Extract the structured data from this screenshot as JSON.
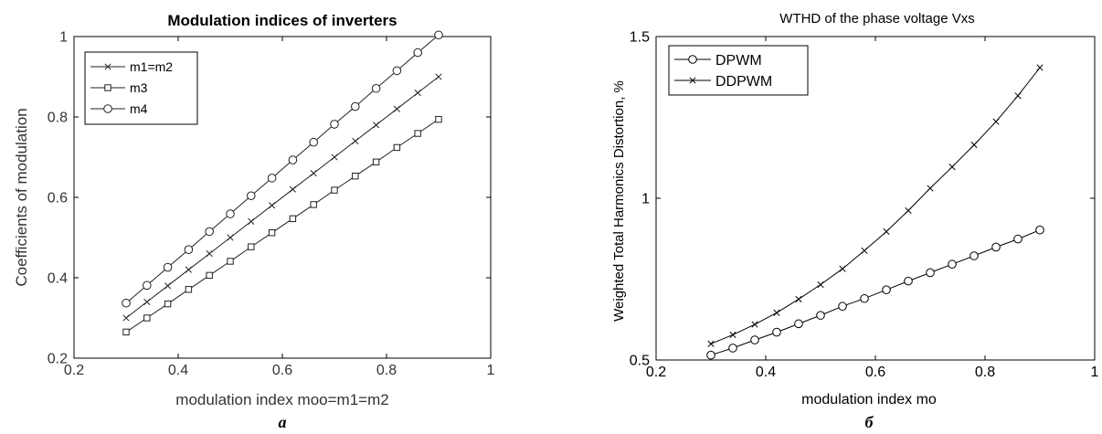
{
  "chart_data": [
    {
      "type": "line",
      "title": "Modulation indices of inverters",
      "xlabel": "modulation index moo=m1=m2",
      "ylabel": "Coefficients of modulation",
      "xlim": [
        0.2,
        1
      ],
      "ylim": [
        0.2,
        1
      ],
      "xticks": [
        "0.2",
        "0.4",
        "0.6",
        "0.8",
        "1"
      ],
      "yticks": [
        "0.2",
        "0.4",
        "0.6",
        "0.8",
        "1"
      ],
      "grid": false,
      "legend_position": "top-left",
      "caption": "a",
      "x": [
        0.3,
        0.34,
        0.38,
        0.42,
        0.46,
        0.5,
        0.54,
        0.58,
        0.62,
        0.66,
        0.7,
        0.74,
        0.78,
        0.82,
        0.86,
        0.9
      ],
      "series": [
        {
          "name": "m1=m2",
          "marker": "x",
          "values": [
            0.3,
            0.34,
            0.38,
            0.42,
            0.46,
            0.5,
            0.54,
            0.58,
            0.62,
            0.66,
            0.7,
            0.74,
            0.78,
            0.82,
            0.86,
            0.9
          ]
        },
        {
          "name": "m3",
          "marker": "square",
          "values": [
            0.265,
            0.3,
            0.335,
            0.371,
            0.406,
            0.441,
            0.477,
            0.512,
            0.547,
            0.582,
            0.618,
            0.653,
            0.688,
            0.724,
            0.759,
            0.794
          ]
        },
        {
          "name": "m4",
          "marker": "circle",
          "values": [
            0.337,
            0.381,
            0.426,
            0.47,
            0.515,
            0.559,
            0.604,
            0.648,
            0.693,
            0.737,
            0.782,
            0.826,
            0.871,
            0.915,
            0.96,
            1.004
          ]
        }
      ]
    },
    {
      "type": "line",
      "title": "WTHD of the phase voltage Vxs",
      "xlabel": "modulation index mo",
      "ylabel": "Weighted Total Harmonics Distortion, %",
      "xlim": [
        0.2,
        1
      ],
      "ylim": [
        0.5,
        1.5
      ],
      "xticks": [
        "0.2",
        "0.4",
        "0.6",
        "0.8",
        "1"
      ],
      "yticks": [
        "0.5",
        "1",
        "1.5"
      ],
      "grid": false,
      "legend_position": "top-left",
      "caption": "б",
      "x": [
        0.3,
        0.34,
        0.38,
        0.42,
        0.46,
        0.5,
        0.54,
        0.58,
        0.62,
        0.66,
        0.7,
        0.74,
        0.78,
        0.82,
        0.86,
        0.9
      ],
      "series": [
        {
          "name": "DPWM",
          "marker": "circle",
          "values": [
            0.515,
            0.537,
            0.562,
            0.586,
            0.612,
            0.638,
            0.666,
            0.69,
            0.717,
            0.744,
            0.77,
            0.796,
            0.822,
            0.849,
            0.874,
            0.902
          ]
        },
        {
          "name": "DDPWM",
          "marker": "x",
          "values": [
            0.55,
            0.578,
            0.61,
            0.646,
            0.688,
            0.733,
            0.782,
            0.838,
            0.897,
            0.962,
            1.031,
            1.097,
            1.165,
            1.237,
            1.317,
            1.404
          ]
        }
      ]
    }
  ]
}
